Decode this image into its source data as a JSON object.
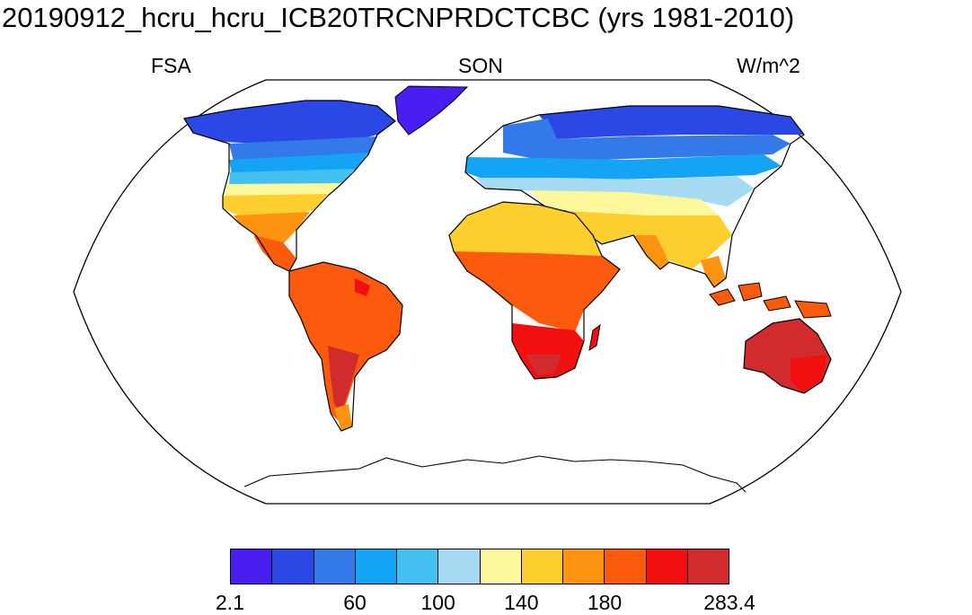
{
  "title": "20190912_hcru_hcru_ICB20TRCNPRDCTCBC (yrs 1981-2010)",
  "left_label": "FSA",
  "center_label": "SON",
  "right_label": "W/m^2",
  "colorbar": {
    "colors": [
      "#4a1ef0",
      "#2b48e6",
      "#3479e8",
      "#14a3f5",
      "#43c0f0",
      "#a6daf2",
      "#fcf79a",
      "#fccf2e",
      "#fc9410",
      "#fc5a0c",
      "#f20f0f",
      "#d12b2e"
    ],
    "labels": [
      {
        "text": "2.1",
        "boundary": 0
      },
      {
        "text": "60",
        "boundary": 3
      },
      {
        "text": "100",
        "boundary": 5
      },
      {
        "text": "140",
        "boundary": 7
      },
      {
        "text": "180",
        "boundary": 9
      },
      {
        "text": "283.4",
        "boundary": 12
      }
    ]
  }
}
